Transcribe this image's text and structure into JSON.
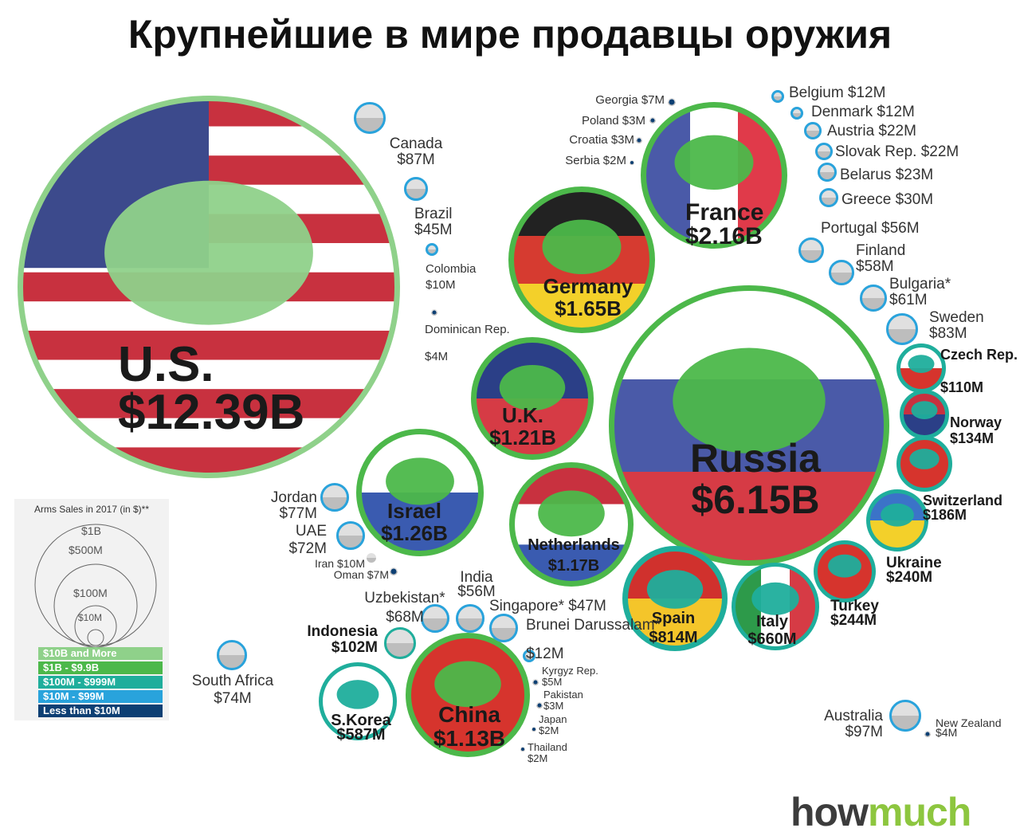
{
  "title": "Крупнейшие в мире продавцы оружия",
  "brand": {
    "part1": "how",
    "part2": "much"
  },
  "legend": {
    "title": "Arms Sales in 2017 (in $)**",
    "rings": [
      "$1B",
      "$500M",
      "$100M",
      "$10M"
    ],
    "tiers": [
      {
        "label": "$10B and More",
        "color": "#8fd18a"
      },
      {
        "label": "$1B - $9.9B",
        "color": "#4cb84a"
      },
      {
        "label": "$100M - $999M",
        "color": "#1fae9c"
      },
      {
        "label": "$10M - $99M",
        "color": "#29a3dc"
      },
      {
        "label": "Less than $10M",
        "color": "#0d3f73"
      }
    ]
  },
  "chart_data": {
    "type": "bubble",
    "title": "Крупнейшие в мире продавцы оружия",
    "unit": "USD",
    "series": [
      {
        "country": "U.S.",
        "label": "$12.39B",
        "value": 12390000000
      },
      {
        "country": "Russia",
        "label": "$6.15B",
        "value": 6150000000
      },
      {
        "country": "France",
        "label": "$2.16B",
        "value": 2160000000
      },
      {
        "country": "Germany",
        "label": "$1.65B",
        "value": 1650000000
      },
      {
        "country": "Israel",
        "label": "$1.26B",
        "value": 1260000000
      },
      {
        "country": "U.K.",
        "label": "$1.21B",
        "value": 1210000000
      },
      {
        "country": "Netherlands",
        "label": "$1.17B",
        "value": 1170000000
      },
      {
        "country": "China",
        "label": "$1.13B",
        "value": 1130000000
      },
      {
        "country": "Spain",
        "label": "$814M",
        "value": 814000000
      },
      {
        "country": "Italy",
        "label": "$660M",
        "value": 660000000
      },
      {
        "country": "S.Korea",
        "label": "$587M",
        "value": 587000000
      },
      {
        "country": "Turkey",
        "label": "$244M",
        "value": 244000000
      },
      {
        "country": "Ukraine",
        "label": "$240M",
        "value": 240000000
      },
      {
        "country": "Switzerland",
        "label": "$186M",
        "value": 186000000
      },
      {
        "country": "Norway",
        "label": "$134M",
        "value": 134000000
      },
      {
        "country": "Czech Rep.",
        "label": "$110M",
        "value": 110000000
      },
      {
        "country": "Indonesia",
        "label": "$102M",
        "value": 102000000
      },
      {
        "country": "Australia",
        "label": "$97M",
        "value": 97000000
      },
      {
        "country": "Canada",
        "label": "$87M",
        "value": 87000000
      },
      {
        "country": "Sweden",
        "label": "$83M",
        "value": 83000000
      },
      {
        "country": "Jordan",
        "label": "$77M",
        "value": 77000000
      },
      {
        "country": "South Africa",
        "label": "$74M",
        "value": 74000000
      },
      {
        "country": "UAE",
        "label": "$72M",
        "value": 72000000
      },
      {
        "country": "Uzbekistan*",
        "label": "$68M",
        "value": 68000000
      },
      {
        "country": "Bulgaria*",
        "label": "$61M",
        "value": 61000000
      },
      {
        "country": "Finland",
        "label": "$58M",
        "value": 58000000
      },
      {
        "country": "Portugal",
        "label": "$56M",
        "value": 56000000
      },
      {
        "country": "India",
        "label": "$56M",
        "value": 56000000
      },
      {
        "country": "Singapore*",
        "label": "$47M",
        "value": 47000000
      },
      {
        "country": "Brazil",
        "label": "$45M",
        "value": 45000000
      },
      {
        "country": "Greece",
        "label": "$30M",
        "value": 30000000
      },
      {
        "country": "Belarus",
        "label": "$23M",
        "value": 23000000
      },
      {
        "country": "Austria",
        "label": "$22M",
        "value": 22000000
      },
      {
        "country": "Slovak Rep.",
        "label": "$22M",
        "value": 22000000
      },
      {
        "country": "Belgium",
        "label": "$12M",
        "value": 12000000
      },
      {
        "country": "Denmark",
        "label": "$12M",
        "value": 12000000
      },
      {
        "country": "Brunei Darussalam*",
        "label": "$12M",
        "value": 12000000
      },
      {
        "country": "Colombia",
        "label": "$10M",
        "value": 10000000
      },
      {
        "country": "Iran",
        "label": "$10M",
        "value": 10000000
      },
      {
        "country": "Georgia",
        "label": "$7M",
        "value": 7000000
      },
      {
        "country": "Oman",
        "label": "$7M",
        "value": 7000000
      },
      {
        "country": "Kyrgyz Rep.",
        "label": "$5M",
        "value": 5000000
      },
      {
        "country": "Dominican Rep.",
        "label": "$4M",
        "value": 4000000
      },
      {
        "country": "New Zealand",
        "label": "$4M",
        "value": 4000000
      },
      {
        "country": "Poland",
        "label": "$3M",
        "value": 3000000
      },
      {
        "country": "Croatia",
        "label": "$3M",
        "value": 3000000
      },
      {
        "country": "Pakistan",
        "label": "$3M",
        "value": 3000000
      },
      {
        "country": "Serbia",
        "label": "$2M",
        "value": 2000000
      },
      {
        "country": "Japan",
        "label": "$2M",
        "value": 2000000
      },
      {
        "country": "Thailand",
        "label": "$2M",
        "value": 2000000
      }
    ]
  }
}
